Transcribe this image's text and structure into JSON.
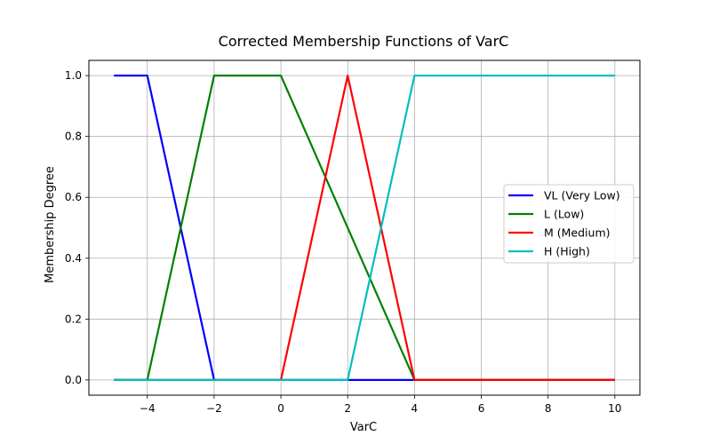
{
  "chart_data": {
    "type": "line",
    "title": "Corrected Membership Functions of VarC",
    "xlabel": "VarC",
    "ylabel": "Membership Degree",
    "xlim": [
      -5.75,
      10.75
    ],
    "ylim": [
      -0.05,
      1.05
    ],
    "xticks": [
      -4,
      -2,
      0,
      2,
      4,
      6,
      8,
      10
    ],
    "yticks": [
      0.0,
      0.2,
      0.4,
      0.6,
      0.8,
      1.0
    ],
    "xtick_labels": [
      "−4",
      "−2",
      "0",
      "2",
      "4",
      "6",
      "8",
      "10"
    ],
    "ytick_labels": [
      "0.0",
      "0.2",
      "0.4",
      "0.6",
      "0.8",
      "1.0"
    ],
    "grid": true,
    "legend_position": "center-right",
    "series": [
      {
        "name": "VL (Very Low)",
        "color": "#0000ff",
        "x": [
          -5,
          -4,
          -2,
          2,
          4,
          10
        ],
        "y": [
          1,
          1,
          0,
          0,
          0,
          0
        ]
      },
      {
        "name": "L (Low)",
        "color": "#008000",
        "x": [
          -5,
          -4,
          -2,
          0,
          4,
          10
        ],
        "y": [
          0,
          0,
          1,
          1,
          0,
          0
        ]
      },
      {
        "name": "M (Medium)",
        "color": "#ff0000",
        "x": [
          -5,
          0,
          2,
          4,
          10
        ],
        "y": [
          0,
          0,
          1,
          0,
          0
        ]
      },
      {
        "name": "H (High)",
        "color": "#00bfbf",
        "x": [
          -5,
          2,
          4,
          10
        ],
        "y": [
          0,
          0,
          1,
          1
        ]
      }
    ]
  }
}
